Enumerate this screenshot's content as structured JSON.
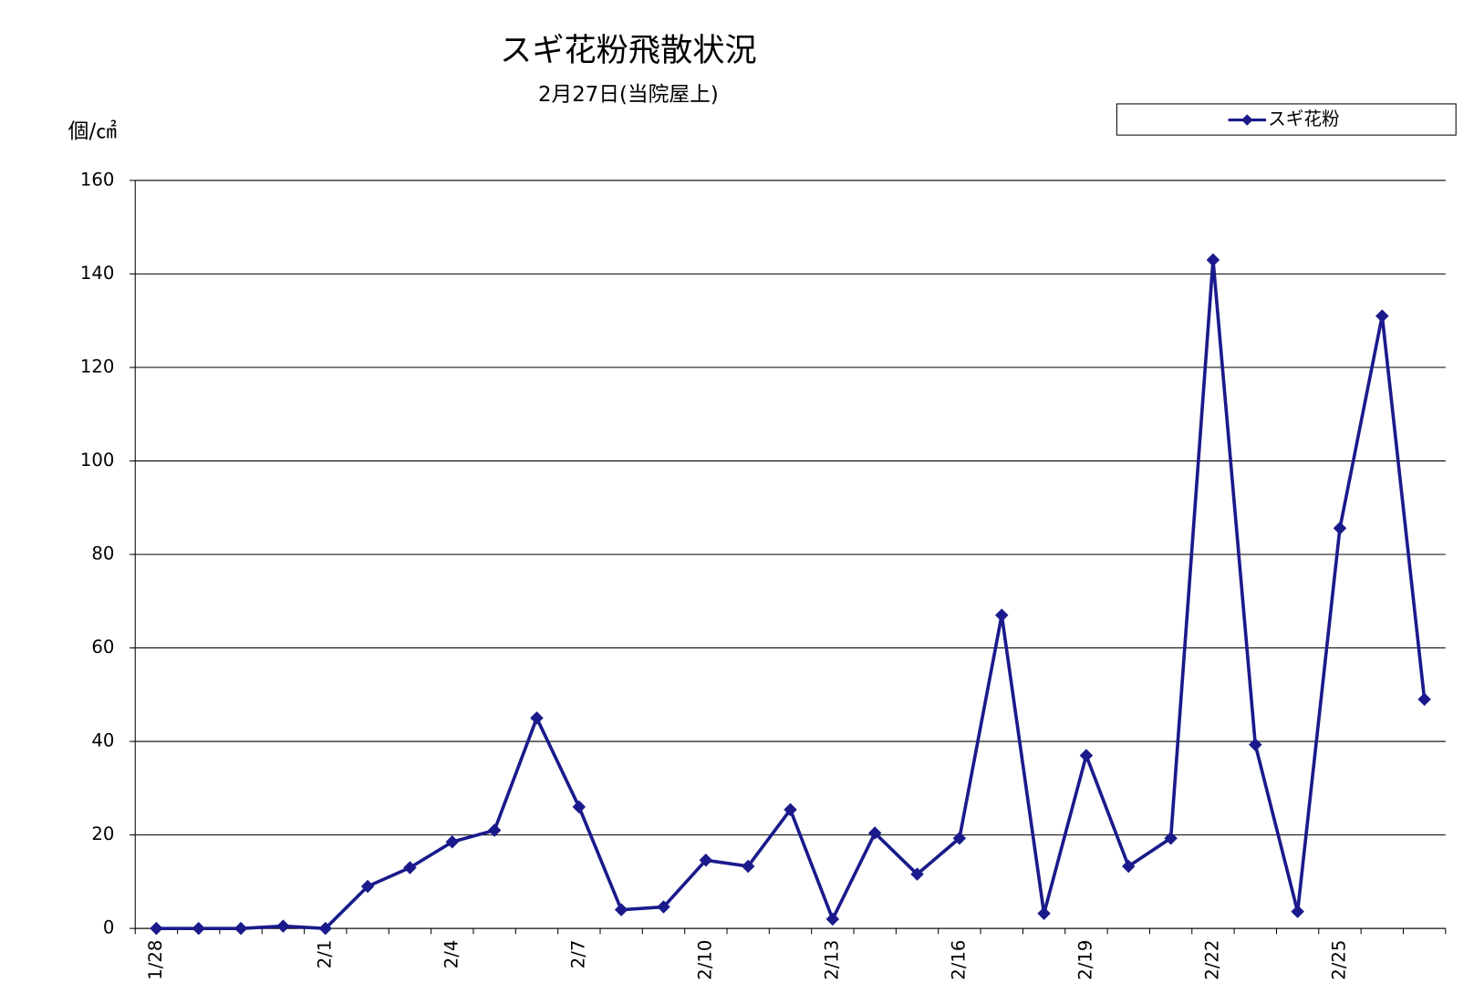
{
  "chart_data": {
    "type": "line",
    "title": "スギ花粉飛散状況",
    "subtitle": "2月27日(当院屋上)",
    "y_label": "個/㎠",
    "categories": [
      "1/28",
      null,
      null,
      null,
      "2/1",
      null,
      null,
      "2/4",
      null,
      null,
      "2/7",
      null,
      null,
      "2/10",
      null,
      null,
      "2/13",
      null,
      null,
      "2/16",
      null,
      null,
      "2/19",
      null,
      null,
      "2/22",
      null,
      null,
      "2/25",
      null,
      null
    ],
    "series": [
      {
        "name": "スギ花粉",
        "color": "#1a1a8c",
        "values": [
          0,
          0,
          0,
          0.5,
          0,
          9,
          13,
          18.5,
          21,
          45,
          26,
          4,
          4.6,
          14.6,
          13.3,
          25.4,
          2,
          20.4,
          11.6,
          19.3,
          67,
          3.2,
          37,
          13.3,
          19.3,
          143,
          39.3,
          3.6,
          85.6,
          131,
          49
        ]
      }
    ],
    "ylim": [
      0,
      160
    ],
    "yticks": [
      0,
      20,
      40,
      60,
      80,
      100,
      120,
      140,
      160
    ],
    "grid": true,
    "legend": "top-right"
  }
}
